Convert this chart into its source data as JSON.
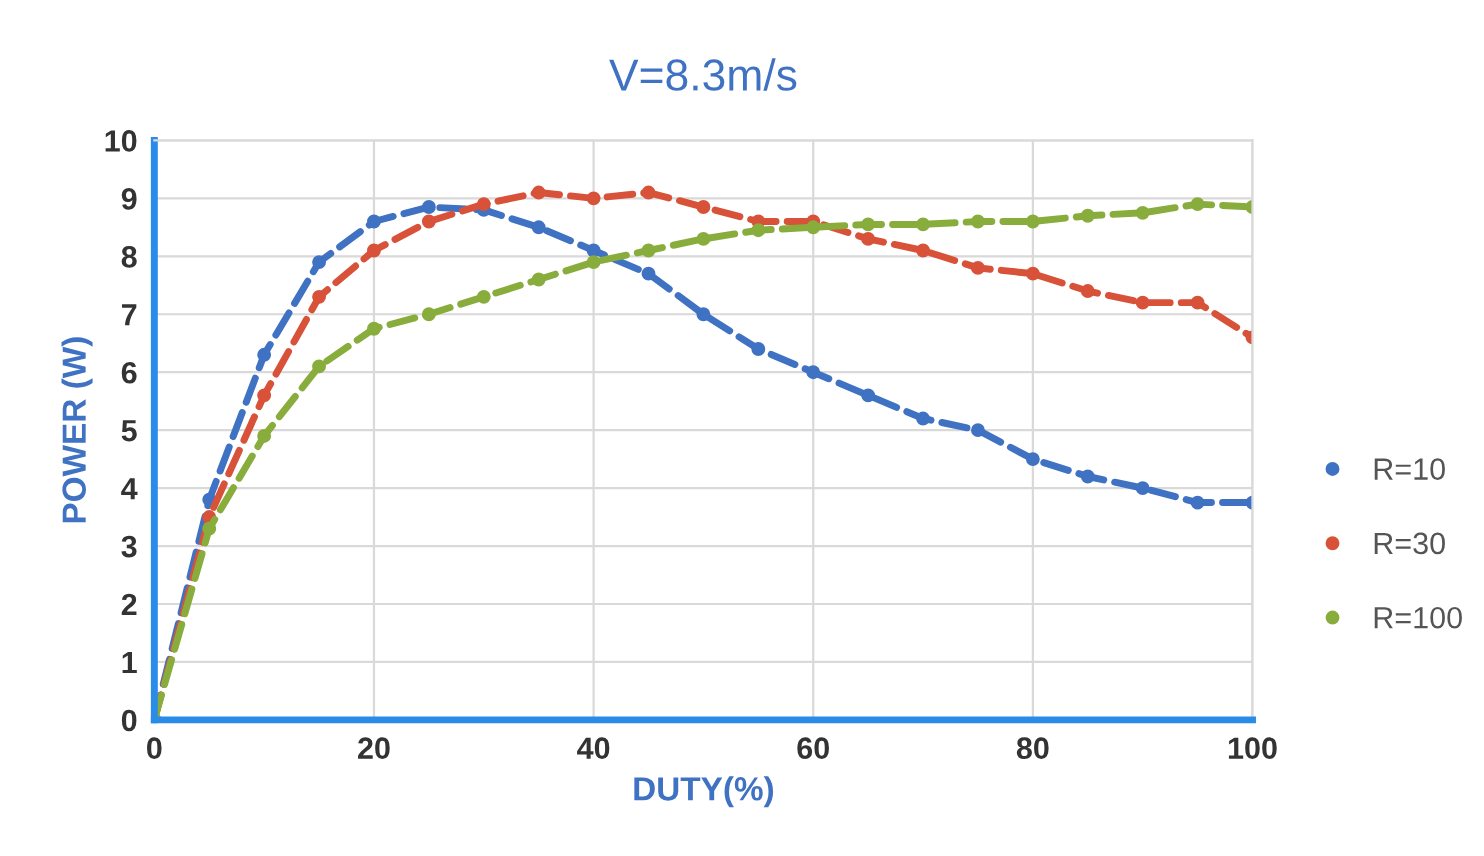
{
  "chart_data": {
    "type": "line",
    "title": "V=8.3m/s",
    "xlabel": "DUTY(%)",
    "ylabel": "POWER (W)",
    "x": [
      0,
      5,
      10,
      15,
      20,
      25,
      30,
      35,
      40,
      45,
      50,
      55,
      60,
      65,
      70,
      75,
      80,
      85,
      90,
      95,
      100
    ],
    "series": [
      {
        "name": "R=10",
        "color": "#3f72c2",
        "values": [
          0,
          3.8,
          6.3,
          7.9,
          8.6,
          8.85,
          8.8,
          8.5,
          8.1,
          7.7,
          7.0,
          6.4,
          6.0,
          5.6,
          5.2,
          5.0,
          4.5,
          4.2,
          4.0,
          3.75,
          3.75
        ]
      },
      {
        "name": "R=30",
        "color": "#d8523a",
        "values": [
          0,
          3.5,
          5.6,
          7.3,
          8.1,
          8.6,
          8.9,
          9.1,
          9.0,
          9.1,
          8.85,
          8.6,
          8.6,
          8.3,
          8.1,
          7.8,
          7.7,
          7.4,
          7.2,
          7.2,
          6.6
        ]
      },
      {
        "name": "R=100",
        "color": "#88ad3c",
        "values": [
          0,
          3.3,
          4.9,
          6.1,
          6.75,
          7.0,
          7.3,
          7.6,
          7.9,
          8.1,
          8.3,
          8.45,
          8.5,
          8.55,
          8.55,
          8.6,
          8.6,
          8.7,
          8.75,
          8.9,
          8.85
        ]
      }
    ],
    "xlim": [
      0,
      100
    ],
    "xticks": [
      0,
      20,
      40,
      60,
      80,
      100
    ],
    "ylim": [
      0,
      10
    ],
    "yticks": [
      0,
      1,
      2,
      3,
      4,
      5,
      6,
      7,
      8,
      9,
      10
    ],
    "grid": true,
    "legend": "right",
    "marker": "circle",
    "line_style": "dashed"
  }
}
